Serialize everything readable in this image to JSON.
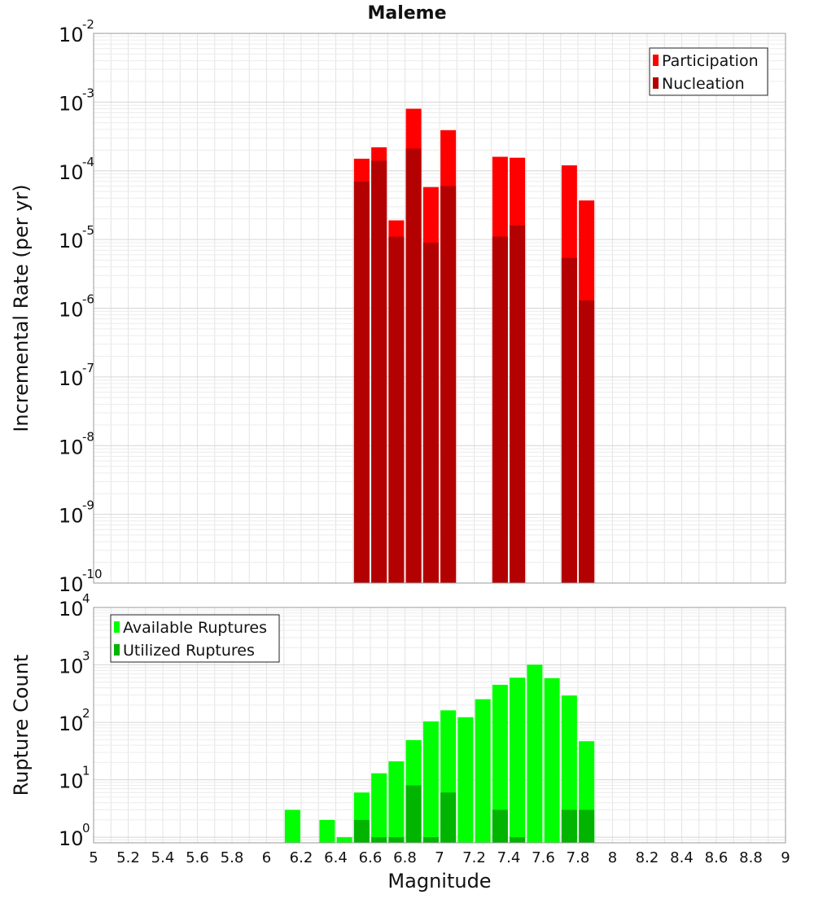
{
  "chart_data": [
    {
      "type": "bar",
      "title": "Maleme",
      "xlabel": "",
      "ylabel": "Incremental Rate (per yr)",
      "y_scale": "log",
      "ylim": [
        1e-10,
        0.01
      ],
      "xlim": [
        5,
        9
      ],
      "grid": true,
      "legend_position": "top-right",
      "series": [
        {
          "name": "Participation",
          "color": "#ff0000",
          "x": [
            6.55,
            6.65,
            6.75,
            6.85,
            6.95,
            7.05,
            7.35,
            7.45,
            7.75,
            7.85
          ],
          "values": [
            0.00015,
            0.00022,
            1.9e-05,
            0.0008,
            5.8e-05,
            0.00039,
            0.00016,
            0.000155,
            0.00012,
            3.7e-05
          ]
        },
        {
          "name": "Nucleation",
          "color": "#b30000",
          "x": [
            6.55,
            6.65,
            6.75,
            6.85,
            6.95,
            7.05,
            7.35,
            7.45,
            7.75,
            7.85
          ],
          "values": [
            7e-05,
            0.00014,
            1.1e-05,
            0.00021,
            9e-06,
            6e-05,
            1.1e-05,
            1.6e-05,
            5.4e-06,
            1.3e-06
          ]
        }
      ],
      "y_ticks": [
        {
          "base": "10",
          "exp": "-2"
        },
        {
          "base": "10",
          "exp": "-3"
        },
        {
          "base": "10",
          "exp": "-4"
        },
        {
          "base": "10",
          "exp": "-5"
        },
        {
          "base": "10",
          "exp": "-6"
        },
        {
          "base": "10",
          "exp": "-7"
        },
        {
          "base": "10",
          "exp": "-8"
        },
        {
          "base": "10",
          "exp": "-9"
        },
        {
          "base": "10",
          "exp": "-10"
        }
      ]
    },
    {
      "type": "bar",
      "title": "",
      "xlabel": "Magnitude",
      "ylabel": "Rupture Count",
      "y_scale": "log",
      "ylim": [
        0.8,
        10000
      ],
      "xlim": [
        5,
        9
      ],
      "grid": true,
      "legend_position": "top-left",
      "series": [
        {
          "name": "Available Ruptures",
          "color": "#00ff00",
          "x": [
            6.15,
            6.35,
            6.45,
            6.55,
            6.65,
            6.75,
            6.85,
            6.95,
            7.05,
            7.15,
            7.25,
            7.35,
            7.45,
            7.55,
            7.65,
            7.75,
            7.85
          ],
          "values": [
            3,
            2,
            1,
            6,
            13,
            21,
            49,
            104,
            162,
            123,
            253,
            451,
            599,
            1010,
            588,
            293,
            47
          ]
        },
        {
          "name": "Utilized Ruptures",
          "color": "#00b400",
          "x": [
            6.55,
            6.65,
            6.75,
            6.85,
            6.95,
            7.05,
            7.35,
            7.45,
            7.75,
            7.85
          ],
          "values": [
            2,
            1,
            1,
            8,
            1,
            6,
            3,
            1,
            3,
            3
          ]
        }
      ],
      "y_ticks": [
        {
          "base": "10",
          "exp": "4"
        },
        {
          "base": "10",
          "exp": "3"
        },
        {
          "base": "10",
          "exp": "2"
        },
        {
          "base": "10",
          "exp": "1"
        },
        {
          "base": "10",
          "exp": "0"
        }
      ],
      "x_ticks": [
        "5",
        "5.2",
        "5.4",
        "5.6",
        "5.8",
        "6",
        "6.2",
        "6.4",
        "6.6",
        "6.8",
        "7",
        "7.2",
        "7.4",
        "7.6",
        "7.8",
        "8",
        "8.2",
        "8.4",
        "8.6",
        "8.8",
        "9"
      ]
    }
  ]
}
